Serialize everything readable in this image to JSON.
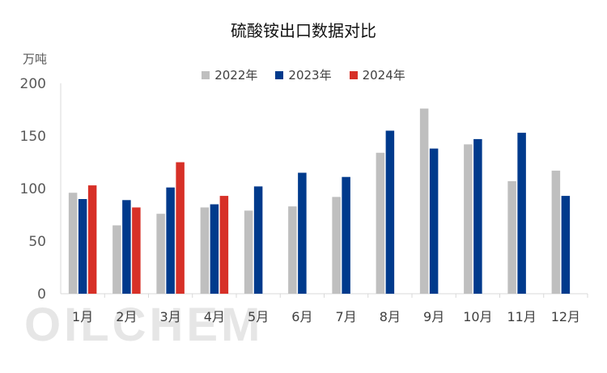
{
  "chart_data": {
    "type": "bar",
    "title": "硫酸铵出口数据对比",
    "unit_label": "万吨",
    "categories": [
      "1月",
      "2月",
      "3月",
      "4月",
      "5月",
      "6月",
      "7月",
      "8月",
      "9月",
      "10月",
      "11月",
      "12月"
    ],
    "series": [
      {
        "name": "2022年",
        "color": "#bfbfbf",
        "values": [
          96,
          65,
          76,
          82,
          79,
          83,
          92,
          134,
          176,
          142,
          107,
          117
        ]
      },
      {
        "name": "2023年",
        "color": "#003a8c",
        "values": [
          90,
          89,
          101,
          85,
          102,
          115,
          111,
          155,
          138,
          147,
          153,
          93
        ]
      },
      {
        "name": "2024年",
        "color": "#d73027",
        "values": [
          103,
          82,
          125,
          93,
          null,
          null,
          null,
          null,
          null,
          null,
          null,
          null
        ]
      }
    ],
    "y_ticks": [
      0,
      50,
      100,
      150,
      200
    ],
    "ylim": [
      0,
      200
    ],
    "legend_position": "top-center",
    "grid": false
  },
  "watermark": "OILCHEM"
}
